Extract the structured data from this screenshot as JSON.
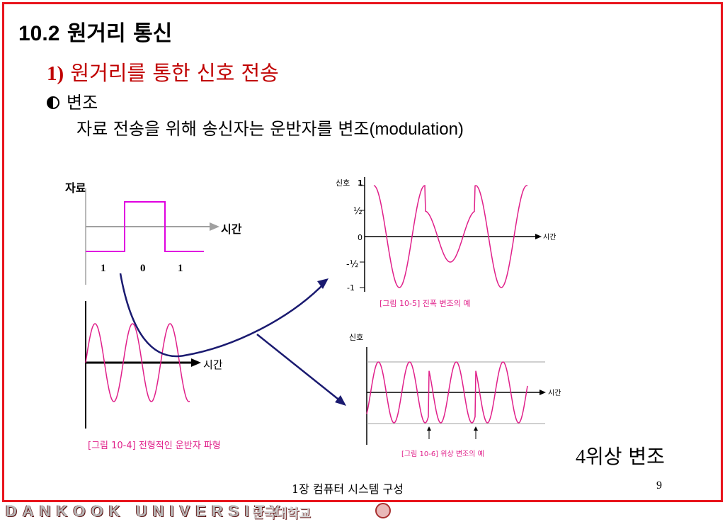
{
  "slide": {
    "title_number": "10.2",
    "title_text": " 원거리 통신",
    "subtitle_number": "1)",
    "subtitle_text": " 원거리를 통한 신호 전송",
    "bullet_label": "변조",
    "body_text": "자료 전송을 위해 송신자는 운반자를 변조",
    "body_text_latin": "(modulation)",
    "caption_number": "4",
    "caption_text": "위상 변조",
    "footer_text": "1장 컴퓨터 시스템 구성",
    "page_number": "9",
    "brand_text": "DANKOOK UNIVERSITY",
    "brand_korean": "단국대학교"
  },
  "figure_data": {
    "y_label": "자료",
    "time_label": "시간",
    "bits": [
      "1",
      "0",
      "1"
    ],
    "carrier_caption": "[그림 10-4] 전형적인 운반자 파형",
    "am_y_label": "신호",
    "am_ticks": [
      "1",
      "½",
      "0",
      "-½",
      "-1"
    ],
    "am_caption": "[그림 10-5]   진폭 변조의 예",
    "pm_y_label": "신호",
    "pm_caption": "[그림 10-6]   위상 변조의 예"
  },
  "colors": {
    "frame": "#e8141c",
    "subtitle": "#c00000",
    "signal": "#e0208a",
    "arrow": "#1a1a70",
    "grid": "#a0a0a0"
  }
}
